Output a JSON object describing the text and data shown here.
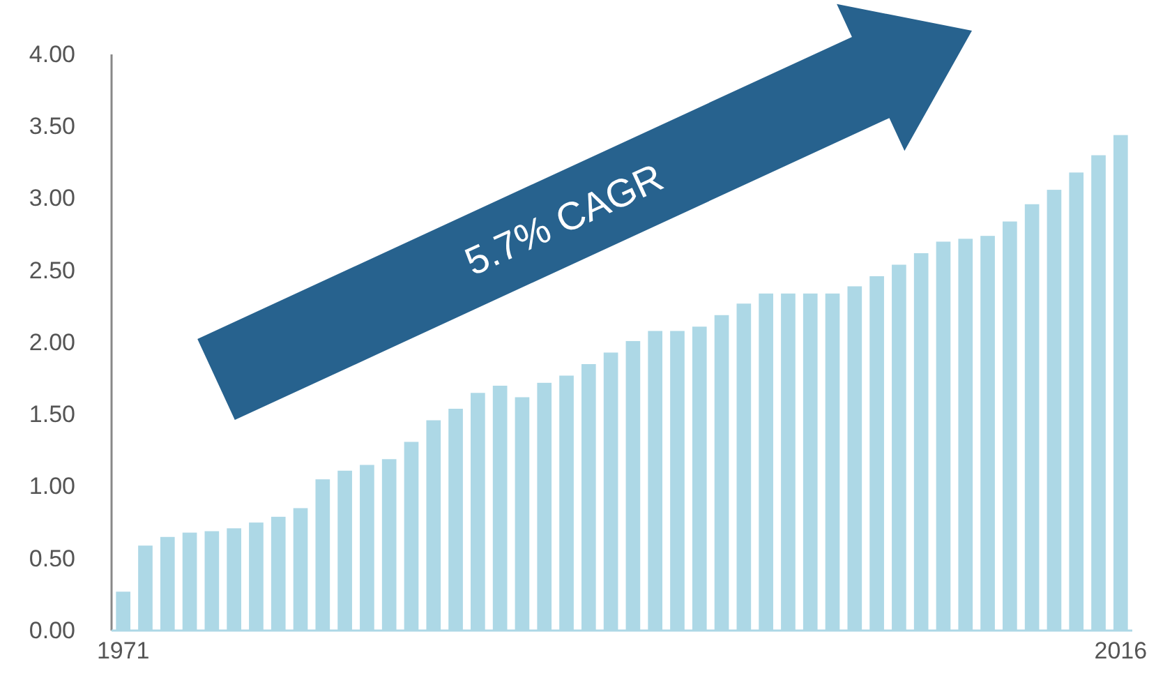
{
  "chart_data": {
    "type": "bar",
    "categories": [
      "1971",
      null,
      null,
      null,
      null,
      null,
      null,
      null,
      null,
      null,
      null,
      null,
      null,
      null,
      null,
      null,
      null,
      null,
      null,
      null,
      null,
      null,
      null,
      null,
      null,
      null,
      null,
      null,
      null,
      null,
      null,
      null,
      null,
      null,
      null,
      null,
      null,
      null,
      null,
      null,
      null,
      null,
      null,
      null,
      null,
      "2016"
    ],
    "values": [
      0.27,
      0.59,
      0.65,
      0.68,
      0.69,
      0.71,
      0.75,
      0.79,
      0.85,
      1.05,
      1.11,
      1.15,
      1.19,
      1.31,
      1.46,
      1.54,
      1.65,
      1.7,
      1.62,
      1.72,
      1.77,
      1.85,
      1.93,
      2.01,
      2.08,
      2.08,
      2.11,
      2.19,
      2.27,
      2.34,
      2.34,
      2.34,
      2.34,
      2.39,
      2.46,
      2.54,
      2.62,
      2.7,
      2.72,
      2.74,
      2.84,
      2.96,
      3.06,
      3.18,
      3.3,
      3.44
    ],
    "color": "#add8e6",
    "ylim": [
      0,
      4
    ],
    "yticks": [
      {
        "value": 0,
        "label": "0.00"
      },
      {
        "value": 0.5,
        "label": "0.50"
      },
      {
        "value": 1,
        "label": "1.00"
      },
      {
        "value": 1.5,
        "label": "1.50"
      },
      {
        "value": 2,
        "label": "2.00"
      },
      {
        "value": 2.5,
        "label": "2.50"
      },
      {
        "value": 3,
        "label": "3.00"
      },
      {
        "value": 3.5,
        "label": "3.50"
      },
      {
        "value": 4,
        "label": "4.00"
      }
    ],
    "grid": false,
    "annotations": [
      "5.7% CAGR"
    ]
  }
}
